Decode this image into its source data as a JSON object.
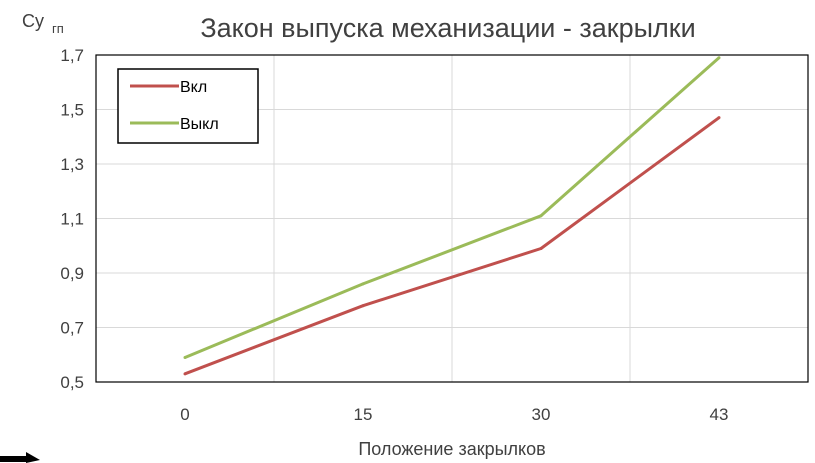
{
  "chart_data": {
    "type": "line",
    "title": "Закон выпуска механизации - закрылки",
    "xlabel": "Положение закрылков",
    "ylabel_main": "Cy",
    "ylabel_sub": "гп",
    "categories": [
      "0",
      "15",
      "30",
      "43"
    ],
    "ylim": [
      0.5,
      1.7
    ],
    "yticks": [
      "0,5",
      "0,7",
      "0,9",
      "1,1",
      "1,3",
      "1,5",
      "1,7"
    ],
    "grid": true,
    "legend_position": "top-left",
    "series": [
      {
        "name": "Вкл",
        "color": "#c0504d",
        "values": [
          0.53,
          0.78,
          0.99,
          1.47
        ]
      },
      {
        "name": "Выкл",
        "color": "#9bbb59",
        "values": [
          0.59,
          0.86,
          1.11,
          1.69
        ]
      }
    ]
  }
}
